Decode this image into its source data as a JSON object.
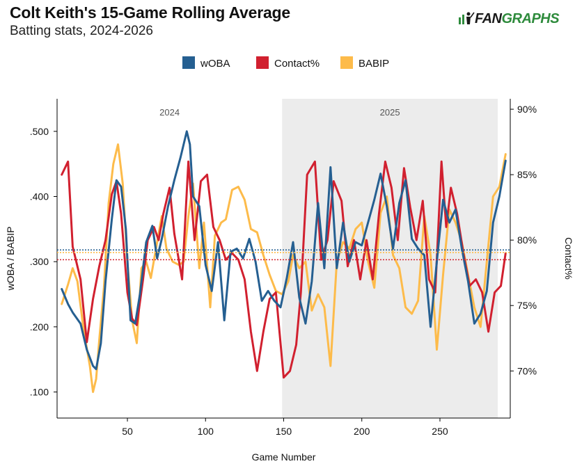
{
  "header": {
    "title": "Colt Keith's 15-Game Rolling Average",
    "subtitle": "Batting stats, 2024-2026",
    "brand_a": "FAN",
    "brand_b": "GRAPHS"
  },
  "colors": {
    "woba": "#255f91",
    "contact": "#d1202f",
    "babip": "#fdbb4a",
    "shade": "#ececec"
  },
  "chart_data": {
    "type": "line",
    "xlabel": "Game Number",
    "ylabel_left": "wOBA / BABIP",
    "ylabel_right": "Contact%",
    "xlim": [
      5,
      295
    ],
    "ylim_left": [
      0.06,
      0.55
    ],
    "ylim_right": [
      0.664,
      0.908
    ],
    "xticks": [
      50,
      100,
      150,
      200,
      250
    ],
    "yticks_left": [
      ".100",
      ".200",
      ".300",
      ".400",
      ".500"
    ],
    "yticks_right": [
      "70%",
      "75%",
      "80%",
      "85%",
      "90%"
    ],
    "seasons": [
      {
        "label": "2024",
        "start": 5,
        "end": 149,
        "shaded": false
      },
      {
        "label": "2025",
        "start": 149,
        "end": 287,
        "shaded": true
      }
    ],
    "legend": "top-center",
    "league_avg": {
      "woba": 0.318,
      "babip": 0.314,
      "contact": 0.785
    },
    "series": [
      {
        "name": "wOBA",
        "axis": "left",
        "x": [
          8,
          12,
          15,
          20,
          24,
          28,
          30,
          33,
          36,
          40,
          43,
          46,
          49,
          52,
          55,
          58,
          62,
          66,
          69,
          72,
          76,
          80,
          84,
          88,
          90,
          92,
          96,
          100,
          104,
          108,
          112,
          116,
          120,
          124,
          128,
          132,
          136,
          140,
          144,
          148,
          152,
          156,
          160,
          164,
          168,
          172,
          176,
          180,
          184,
          188,
          192,
          196,
          200,
          204,
          208,
          212,
          216,
          220,
          224,
          228,
          232,
          236,
          240,
          244,
          248,
          252,
          256,
          260,
          264,
          268,
          272,
          276,
          280,
          284,
          288,
          292
        ],
        "values": [
          0.258,
          0.235,
          0.222,
          0.205,
          0.165,
          0.14,
          0.135,
          0.175,
          0.27,
          0.365,
          0.425,
          0.415,
          0.35,
          0.21,
          0.205,
          0.25,
          0.33,
          0.355,
          0.305,
          0.335,
          0.385,
          0.425,
          0.46,
          0.5,
          0.48,
          0.4,
          0.385,
          0.295,
          0.255,
          0.33,
          0.21,
          0.315,
          0.32,
          0.305,
          0.335,
          0.3,
          0.24,
          0.255,
          0.24,
          0.23,
          0.275,
          0.33,
          0.245,
          0.205,
          0.27,
          0.39,
          0.29,
          0.445,
          0.29,
          0.36,
          0.3,
          0.33,
          0.325,
          0.36,
          0.395,
          0.435,
          0.385,
          0.32,
          0.39,
          0.425,
          0.335,
          0.32,
          0.31,
          0.2,
          0.3,
          0.395,
          0.36,
          0.38,
          0.32,
          0.27,
          0.205,
          0.22,
          0.255,
          0.36,
          0.4,
          0.455
        ]
      },
      {
        "name": "Contact%",
        "axis": "right",
        "x": [
          8,
          12,
          15,
          20,
          24,
          28,
          32,
          36,
          40,
          43,
          46,
          50,
          53,
          56,
          60,
          63,
          67,
          70,
          73,
          77,
          80,
          85,
          89,
          93,
          97,
          101,
          105,
          109,
          113,
          117,
          121,
          125,
          129,
          133,
          137,
          141,
          145,
          150,
          154,
          158,
          161,
          165,
          170,
          174,
          178,
          182,
          187,
          191,
          195,
          199,
          203,
          207,
          211,
          215,
          219,
          223,
          227,
          231,
          235,
          239,
          243,
          247,
          251,
          254,
          257,
          261,
          265,
          269,
          273,
          277,
          281,
          285,
          289,
          292
        ],
        "values": [
          0.85,
          0.86,
          0.795,
          0.77,
          0.722,
          0.755,
          0.78,
          0.8,
          0.835,
          0.845,
          0.82,
          0.76,
          0.74,
          0.735,
          0.77,
          0.8,
          0.81,
          0.8,
          0.82,
          0.84,
          0.805,
          0.77,
          0.86,
          0.8,
          0.845,
          0.85,
          0.81,
          0.8,
          0.785,
          0.79,
          0.785,
          0.77,
          0.73,
          0.7,
          0.73,
          0.755,
          0.76,
          0.695,
          0.7,
          0.72,
          0.76,
          0.85,
          0.86,
          0.785,
          0.8,
          0.845,
          0.83,
          0.78,
          0.8,
          0.77,
          0.8,
          0.77,
          0.82,
          0.86,
          0.84,
          0.8,
          0.855,
          0.825,
          0.8,
          0.83,
          0.77,
          0.76,
          0.86,
          0.81,
          0.84,
          0.82,
          0.79,
          0.765,
          0.77,
          0.76,
          0.73,
          0.76,
          0.765,
          0.79
        ]
      },
      {
        "name": "BABIP",
        "axis": "left",
        "x": [
          8,
          12,
          15,
          18,
          22,
          26,
          28,
          30,
          32,
          35,
          38,
          41,
          44,
          47,
          50,
          53,
          56,
          59,
          62,
          65,
          69,
          72,
          75,
          79,
          83,
          86,
          89,
          92,
          96,
          99,
          103,
          106,
          110,
          113,
          117,
          121,
          125,
          129,
          133,
          137,
          141,
          145,
          149,
          153,
          156,
          160,
          164,
          168,
          172,
          176,
          180,
          184,
          188,
          192,
          196,
          200,
          204,
          208,
          212,
          216,
          220,
          224,
          228,
          232,
          236,
          240,
          244,
          248,
          252,
          256,
          260,
          264,
          268,
          272,
          276,
          280,
          284,
          288,
          292
        ],
        "values": [
          0.235,
          0.265,
          0.29,
          0.27,
          0.195,
          0.14,
          0.1,
          0.12,
          0.18,
          0.26,
          0.39,
          0.45,
          0.48,
          0.42,
          0.3,
          0.21,
          0.175,
          0.29,
          0.3,
          0.275,
          0.33,
          0.37,
          0.32,
          0.3,
          0.295,
          0.3,
          0.37,
          0.42,
          0.29,
          0.36,
          0.23,
          0.34,
          0.36,
          0.365,
          0.41,
          0.415,
          0.395,
          0.35,
          0.345,
          0.31,
          0.28,
          0.255,
          0.25,
          0.27,
          0.31,
          0.29,
          0.3,
          0.225,
          0.25,
          0.23,
          0.14,
          0.3,
          0.33,
          0.32,
          0.35,
          0.36,
          0.3,
          0.26,
          0.375,
          0.4,
          0.31,
          0.29,
          0.23,
          0.22,
          0.24,
          0.37,
          0.31,
          0.165,
          0.28,
          0.38,
          0.36,
          0.33,
          0.28,
          0.23,
          0.2,
          0.3,
          0.4,
          0.415,
          0.465
        ]
      }
    ]
  }
}
